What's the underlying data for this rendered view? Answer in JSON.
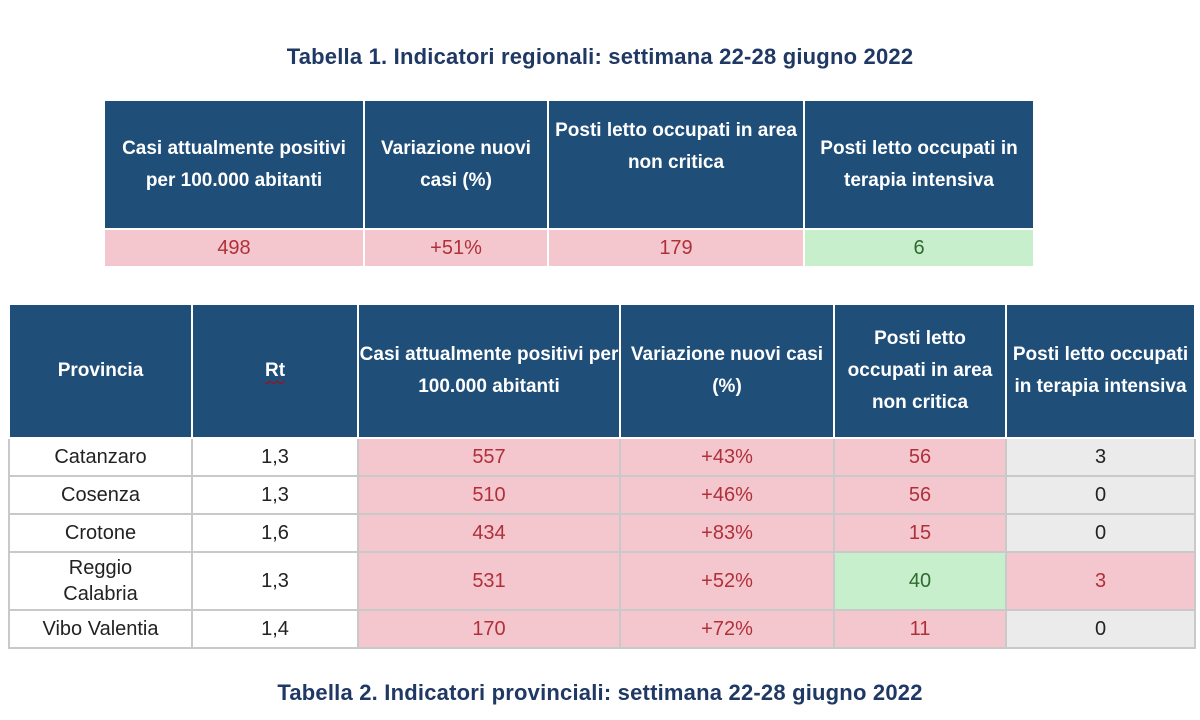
{
  "table1": {
    "title": "Tabella 1. Indicatori regionali: settimana 22-28 giugno 2022",
    "headers": [
      "Casi attualmente positivi per 100.000 abitanti",
      "Variazione nuovi casi (%)",
      "Posti letto occupati in area non critica",
      "Posti letto occupati in terapia intensiva"
    ],
    "values": [
      "498",
      "+51%",
      "179",
      "6"
    ]
  },
  "table2": {
    "title": "Tabella 2. Indicatori provinciali: settimana 22-28 giugno 2022",
    "headers": [
      "Provincia",
      "Rt",
      "Casi attualmente positivi per 100.000 abitanti",
      "Variazione nuovi casi (%)",
      "Posti letto occupati in area non critica",
      "Posti letto occupati in terapia intensiva"
    ],
    "rows": [
      [
        "Catanzaro",
        "1,3",
        "557",
        "+43%",
        "56",
        "3"
      ],
      [
        "Cosenza",
        "1,3",
        "510",
        "+46%",
        "56",
        "0"
      ],
      [
        "Crotone",
        "1,6",
        "434",
        "+83%",
        "15",
        "0"
      ],
      [
        "Reggio Calabria",
        "1,3",
        "531",
        "+52%",
        "40",
        "3"
      ],
      [
        "Vibo Valentia",
        "1,4",
        "170",
        "+72%",
        "11",
        "0"
      ]
    ]
  },
  "colors": {
    "header_bg": "#1f4e79",
    "title_text": "#1f3864",
    "high_bg": "#f4c7cf",
    "high_text": "#b0303a",
    "low_bg": "#c8efcc",
    "low_text": "#2e6b2e",
    "neutral_bg": "#ebebeb"
  }
}
